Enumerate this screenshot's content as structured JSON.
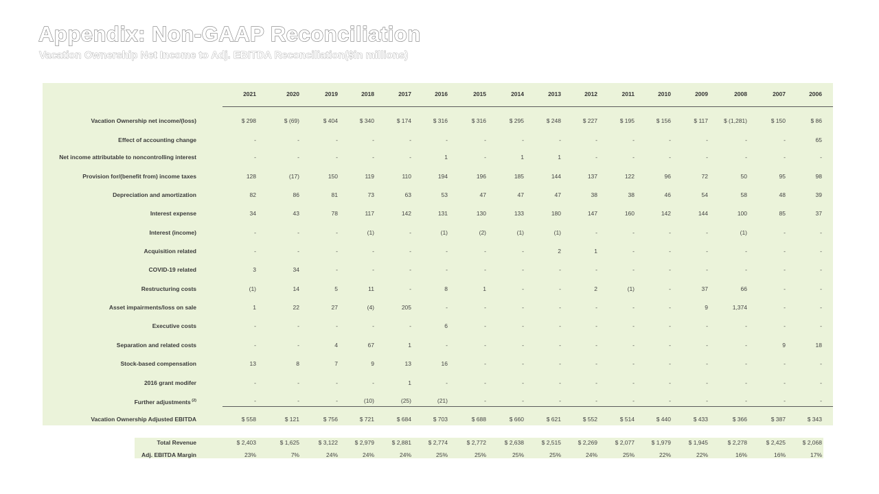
{
  "title": "Appendix: Non-GAAP Reconciliation",
  "subtitle": "Vacation Ownership Net Income to Adj. EBITDA Reconciliation($in millions)",
  "years": [
    "2021",
    "2020",
    "2019",
    "2018",
    "2017",
    "2016",
    "2015",
    "2014",
    "2013",
    "2012",
    "2011",
    "2010",
    "2009",
    "2008",
    "2007",
    "2006"
  ],
  "rows": [
    {
      "label": "Vacation Ownership net income/(loss)",
      "values": [
        "$ 298",
        "$ (69)",
        "$ 404",
        "$ 340",
        "$ 174",
        "$ 316",
        "$ 316",
        "$ 295",
        "$ 248",
        "$ 227",
        "$ 195",
        "$ 156",
        "$ 117",
        "$ (1,281)",
        "$ 150",
        "$ 86"
      ]
    },
    {
      "label": "Effect of accounting change",
      "values": [
        "-",
        "-",
        "-",
        "-",
        "-",
        "-",
        "-",
        "-",
        "-",
        "-",
        "-",
        "-",
        "-",
        "-",
        "-",
        "65"
      ]
    },
    {
      "label": "Net income attributable to noncontrolling interest",
      "values": [
        "-",
        "-",
        "-",
        "-",
        "-",
        "1",
        "-",
        "1",
        "1",
        "-",
        "-",
        "-",
        "-",
        "-",
        "-",
        "-"
      ]
    },
    {
      "label": "Provision for/(benefit from) income taxes",
      "values": [
        "128",
        "(17)",
        "150",
        "119",
        "110",
        "194",
        "196",
        "185",
        "144",
        "137",
        "122",
        "96",
        "72",
        "50",
        "95",
        "98"
      ]
    },
    {
      "label": "Depreciation and amortization",
      "values": [
        "82",
        "86",
        "81",
        "73",
        "63",
        "53",
        "47",
        "47",
        "47",
        "38",
        "38",
        "46",
        "54",
        "58",
        "48",
        "39"
      ]
    },
    {
      "label": "Interest expense",
      "values": [
        "34",
        "43",
        "78",
        "117",
        "142",
        "131",
        "130",
        "133",
        "180",
        "147",
        "160",
        "142",
        "144",
        "100",
        "85",
        "37"
      ]
    },
    {
      "label": "Interest (income)",
      "values": [
        "-",
        "-",
        "-",
        "(1)",
        "-",
        "(1)",
        "(2)",
        "(1)",
        "(1)",
        "-",
        "-",
        "-",
        "-",
        "(1)",
        "-",
        "-"
      ]
    },
    {
      "label": "Acquisition related",
      "values": [
        "-",
        "-",
        "-",
        "-",
        "-",
        "-",
        "-",
        "-",
        "2",
        "1",
        "-",
        "-",
        "-",
        "-",
        "-",
        "-"
      ]
    },
    {
      "label": "COVID-19 related",
      "values": [
        "3",
        "34",
        "-",
        "-",
        "-",
        "-",
        "-",
        "-",
        "-",
        "-",
        "-",
        "-",
        "-",
        "-",
        "-",
        "-"
      ]
    },
    {
      "label": "Restructuring costs",
      "values": [
        "(1)",
        "14",
        "5",
        "11",
        "-",
        "8",
        "1",
        "-",
        "-",
        "2",
        "(1)",
        "-",
        "37",
        "66",
        "-",
        "-"
      ]
    },
    {
      "label": "Asset  impairments/loss on sale",
      "values": [
        "1",
        "22",
        "27",
        "(4)",
        "205",
        "-",
        "-",
        "-",
        "-",
        "-",
        "-",
        "-",
        "9",
        "1,374",
        "-",
        "-"
      ]
    },
    {
      "label": "Executive costs",
      "values": [
        "-",
        "-",
        "-",
        "-",
        "-",
        "6",
        "-",
        "-",
        "-",
        "-",
        "-",
        "-",
        "-",
        "-",
        "-",
        "-"
      ]
    },
    {
      "label": "Separation and related costs",
      "values": [
        "-",
        "-",
        "4",
        "67",
        "1",
        "-",
        "-",
        "-",
        "-",
        "-",
        "-",
        "-",
        "-",
        "-",
        "9",
        "18"
      ]
    },
    {
      "label": "Stock-based compensation",
      "values": [
        "13",
        "8",
        "7",
        "9",
        "13",
        "16",
        "-",
        "-",
        "-",
        "-",
        "-",
        "-",
        "-",
        "-",
        "-",
        "-"
      ]
    },
    {
      "label": "2016 grant modifer",
      "values": [
        "-",
        "-",
        "-",
        "-",
        "1",
        "-",
        "-",
        "-",
        "-",
        "-",
        "-",
        "-",
        "-",
        "-",
        "-",
        "-"
      ]
    },
    {
      "label": "Further adjustments",
      "sup": "(2)",
      "values": [
        "-",
        "-",
        "-",
        "(10)",
        "(25)",
        "(21)",
        "-",
        "-",
        "-",
        "-",
        "-",
        "-",
        "-",
        "-",
        "-",
        "-"
      ]
    },
    {
      "label": "Vacation Ownership Adjusted EBITDA",
      "values": [
        "$ 558",
        "$ 121",
        "$ 756",
        "$ 721",
        "$ 684",
        "$ 703",
        "$ 688",
        "$ 660",
        "$ 621",
        "$ 552",
        "$ 514",
        "$ 440",
        "$ 433",
        "$ 366",
        "$ 387",
        "$ 343"
      ]
    }
  ],
  "bottom_rows": [
    {
      "label": "Total Revenue",
      "values": [
        "$ 2,403",
        "$ 1,625",
        "$ 3,122",
        "$ 2,979",
        "$ 2,881",
        "$ 2,774",
        "$ 2,772",
        "$ 2,638",
        "$ 2,515",
        "$ 2,269",
        "$ 2,077",
        "$ 1,979",
        "$ 1,945",
        "$ 2,278",
        "$ 2,425",
        "$ 2,068"
      ]
    },
    {
      "label": "Adj. EBITDA Margin",
      "values": [
        "23%",
        "7%",
        "24%",
        "24%",
        "24%",
        "25%",
        "25%",
        "25%",
        "25%",
        "24%",
        "25%",
        "22%",
        "22%",
        "16%",
        "16%",
        "17%"
      ]
    }
  ]
}
